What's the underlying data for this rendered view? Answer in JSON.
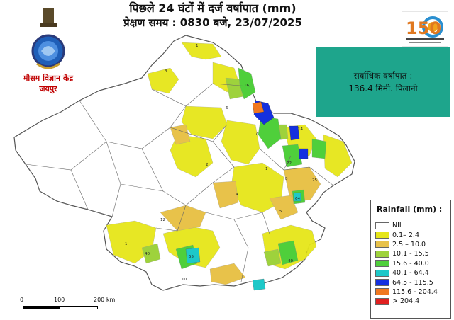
{
  "title": {
    "line1": "पिछले 24 घंटों में दर्ज वर्षापात (mm)",
    "line2": "प्रेक्षण समय : 0830 बजे, 23/07/2025"
  },
  "office": {
    "line1": "मौसम विज्ञान केंद्र",
    "line2": "जयपुर"
  },
  "max_rainfall": {
    "label": "सर्वाधिक वर्षापात :",
    "value": "136.4 मिमी. पिलानी"
  },
  "anniversary_logo": {
    "number": "150"
  },
  "legend": {
    "title": "Rainfall (mm) :",
    "items": [
      {
        "label": "NIL",
        "color": "#ffffff"
      },
      {
        "label": "0.1– 2.4",
        "color": "#e6e619"
      },
      {
        "label": "2.5 – 10.0",
        "color": "#e8c24a"
      },
      {
        "label": "10.1 - 15.5",
        "color": "#9ed23c"
      },
      {
        "label": "15.6 - 40.0",
        "color": "#4fcf3b"
      },
      {
        "label": "40.1 - 64.4",
        "color": "#1ec8c8"
      },
      {
        "label": "64.5 - 115.5",
        "color": "#1430e0"
      },
      {
        "label": "115.6 - 204.4",
        "color": "#f07820"
      },
      {
        "label": "> 204.4",
        "color": "#e02020"
      }
    ]
  },
  "scale_bar": {
    "labels": [
      "0",
      "100",
      "200 km"
    ]
  },
  "map": {
    "region": "Rajasthan",
    "station_values": [
      "3",
      "1",
      "6",
      "4",
      "2",
      "7",
      "5",
      "8",
      "10",
      "11",
      "12",
      "14",
      "16",
      "22",
      "25",
      "40",
      "64",
      "55"
    ]
  }
}
